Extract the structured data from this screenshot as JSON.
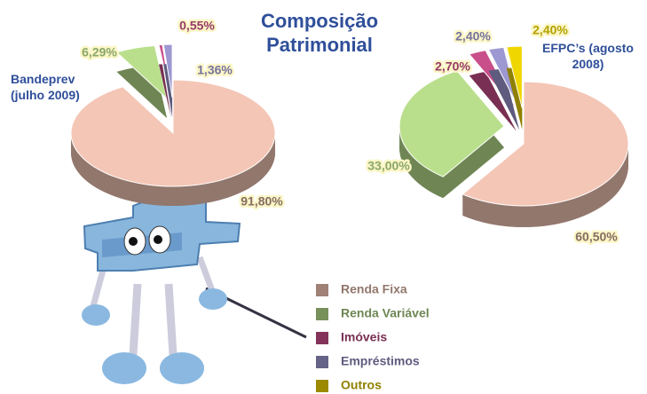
{
  "title": "Composição Patrimonial",
  "chart_data": [
    {
      "type": "pie",
      "title": "Bandeprev (julho 2009)",
      "categories": [
        "Renda Fixa",
        "Renda Variável",
        "Imóveis",
        "Empréstimos"
      ],
      "values": [
        91.8,
        6.29,
        0.55,
        1.36
      ],
      "value_labels": [
        "91,80%",
        "6,29%",
        "0,55%",
        "1,36%"
      ],
      "colors": [
        "#f4c6b6",
        "#b9df8c",
        "#c94f8b",
        "#9d98d2"
      ]
    },
    {
      "type": "pie",
      "title": "EFPC’s (agosto 2008)",
      "categories": [
        "Renda Fixa",
        "Renda Variável",
        "Imóveis",
        "Empréstimos",
        "Outros"
      ],
      "values": [
        60.5,
        33.0,
        2.7,
        2.4,
        2.4
      ],
      "value_labels": [
        "60,50%",
        "33,00%",
        "2,70%",
        "2,40%",
        "2,40%"
      ],
      "colors": [
        "#f4c6b6",
        "#b9df8c",
        "#c94f8b",
        "#9d98d2",
        "#f0d600"
      ]
    }
  ]
}
